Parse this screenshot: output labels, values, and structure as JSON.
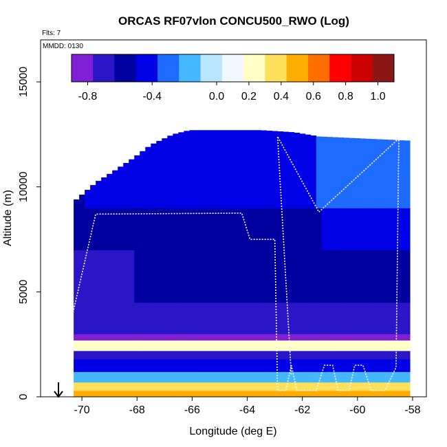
{
  "chart_data": {
    "type": "heatmap",
    "title": "ORCAS RF07vlon CONCU500_RWO (Log)",
    "annotations": {
      "flts": "Flts: 7",
      "mmdd": "MMDD: 0130"
    },
    "xlabel": "Longitude (deg E)",
    "ylabel": "Altitude (m)",
    "xlim": [
      -71.5,
      -57.5
    ],
    "ylim": [
      0,
      17000
    ],
    "x_ticks": [
      -70,
      -68,
      -66,
      -64,
      -62,
      -60,
      -58
    ],
    "y_ticks": [
      0,
      5000,
      10000,
      15000
    ],
    "colorbar": {
      "range": [
        -0.9,
        1.1
      ],
      "ticks": [
        -0.8,
        -0.4,
        0.0,
        0.2,
        0.4,
        0.6,
        0.8,
        1.0
      ],
      "tick_labels": [
        "-0.8",
        "-0.4",
        "0.0",
        "0.2",
        "0.4",
        "0.6",
        "0.8",
        "1.0"
      ],
      "colors": [
        "#7f1fd6",
        "#2a16c7",
        "#00009e",
        "#0000e6",
        "#1e6bff",
        "#43b7ff",
        "#b9e6ff",
        "#f2f8ff",
        "#ffffc8",
        "#ffe05a",
        "#ffac00",
        "#ff6e00",
        "#ff0000",
        "#cc0000",
        "#8c1616"
      ]
    },
    "boundary_top": [
      [
        -70.3,
        9400
      ],
      [
        -69.6,
        10200
      ],
      [
        -69,
        10700
      ],
      [
        -68.2,
        11400
      ],
      [
        -67.6,
        12000
      ],
      [
        -66.8,
        12500
      ],
      [
        -66.2,
        12700
      ],
      [
        -64.6,
        12700
      ],
      [
        -63.6,
        12700
      ],
      [
        -62.4,
        12600
      ],
      [
        -61.5,
        12400
      ],
      [
        -58.2,
        12200
      ]
    ],
    "bottom_altitude": 0,
    "layers": [
      {
        "alt": [
          0,
          300
        ],
        "value": 0.5
      },
      {
        "alt": [
          300,
          700
        ],
        "value": 0.3
      },
      {
        "alt": [
          700,
          1200
        ],
        "value": -0.2
      },
      {
        "alt": [
          1200,
          1800
        ],
        "value": -0.45
      },
      {
        "alt": [
          1800,
          2200
        ],
        "value": -0.75
      },
      {
        "alt": [
          2200,
          2700
        ],
        "value": 0.2
      },
      {
        "alt": [
          2700,
          3000
        ],
        "value": -0.8
      },
      {
        "alt": [
          3000,
          4500
        ],
        "value": -0.75
      },
      {
        "alt": [
          4500,
          7000
        ],
        "value": -0.65
      },
      {
        "alt": [
          7000,
          9000
        ],
        "value": -0.6
      },
      {
        "alt": [
          9000,
          13000
        ],
        "value": -0.5
      }
    ],
    "flight_track": [
      [
        -70.5,
        3000
      ],
      [
        -69.5,
        8700
      ],
      [
        -64.2,
        8750
      ],
      [
        -63.9,
        7500
      ],
      [
        -63.0,
        7500
      ],
      [
        -62.9,
        300
      ],
      [
        -62.6,
        300
      ],
      [
        -62.4,
        1500
      ],
      [
        -62.2,
        300
      ],
      [
        -61.5,
        300
      ],
      [
        -61.2,
        1500
      ],
      [
        -60.9,
        1500
      ],
      [
        -60.7,
        300
      ],
      [
        -60.3,
        300
      ],
      [
        -60.1,
        1500
      ],
      [
        -59.8,
        1500
      ],
      [
        -59.5,
        300
      ],
      [
        -59.0,
        300
      ],
      [
        -58.6,
        1400
      ],
      [
        -58.5,
        12300
      ],
      [
        -61.4,
        8800
      ],
      [
        -62.9,
        12400
      ],
      [
        -62.4,
        1000
      ]
    ]
  }
}
